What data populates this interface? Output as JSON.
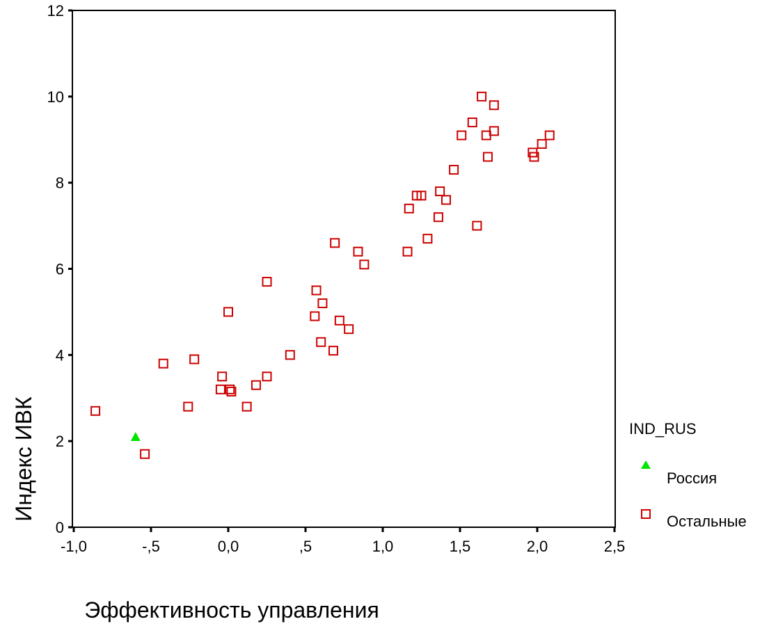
{
  "chart_data": {
    "type": "scatter",
    "xlabel": "Эффективность управления",
    "ylabel": "Индекс ИВК",
    "xlim": [
      -1.0,
      2.5
    ],
    "ylim": [
      0,
      12
    ],
    "x_ticks": [
      {
        "value": -1.0,
        "label": "-1,0"
      },
      {
        "value": -0.5,
        "label": "-,5"
      },
      {
        "value": 0.0,
        "label": "0,0"
      },
      {
        "value": 0.5,
        "label": ",5"
      },
      {
        "value": 1.0,
        "label": "1,0"
      },
      {
        "value": 1.5,
        "label": "1,5"
      },
      {
        "value": 2.0,
        "label": "2,0"
      },
      {
        "value": 2.5,
        "label": "2,5"
      }
    ],
    "y_ticks": [
      {
        "value": 0,
        "label": "0"
      },
      {
        "value": 2,
        "label": "2"
      },
      {
        "value": 4,
        "label": "4"
      },
      {
        "value": 6,
        "label": "6"
      },
      {
        "value": 8,
        "label": "8"
      },
      {
        "value": 10,
        "label": "10"
      },
      {
        "value": 12,
        "label": "12"
      }
    ],
    "grid": false,
    "legend": {
      "title": "IND_RUS",
      "placement": "right"
    },
    "series": [
      {
        "name": "Россия",
        "marker": "triangle",
        "color": "#00e600",
        "points": [
          [
            -0.6,
            2.1
          ]
        ]
      },
      {
        "name": "Остальные",
        "marker": "square",
        "color": "#cc0000",
        "points": [
          [
            -0.86,
            2.7
          ],
          [
            -0.54,
            1.7
          ],
          [
            -0.42,
            3.8
          ],
          [
            -0.26,
            2.8
          ],
          [
            -0.22,
            3.9
          ],
          [
            -0.05,
            3.2
          ],
          [
            -0.04,
            3.5
          ],
          [
            0.0,
            5.0
          ],
          [
            0.01,
            3.2
          ],
          [
            0.02,
            3.15
          ],
          [
            0.12,
            2.8
          ],
          [
            0.18,
            3.3
          ],
          [
            0.25,
            3.5
          ],
          [
            0.25,
            5.7
          ],
          [
            0.4,
            4.0
          ],
          [
            0.56,
            4.9
          ],
          [
            0.57,
            5.5
          ],
          [
            0.6,
            4.3
          ],
          [
            0.61,
            5.2
          ],
          [
            0.68,
            4.1
          ],
          [
            0.69,
            6.6
          ],
          [
            0.72,
            4.8
          ],
          [
            0.78,
            4.6
          ],
          [
            0.84,
            6.4
          ],
          [
            0.88,
            6.1
          ],
          [
            1.16,
            6.4
          ],
          [
            1.17,
            7.4
          ],
          [
            1.22,
            7.7
          ],
          [
            1.25,
            7.7
          ],
          [
            1.29,
            6.7
          ],
          [
            1.36,
            7.2
          ],
          [
            1.37,
            7.8
          ],
          [
            1.41,
            7.6
          ],
          [
            1.46,
            8.3
          ],
          [
            1.51,
            9.1
          ],
          [
            1.58,
            9.4
          ],
          [
            1.61,
            7.0
          ],
          [
            1.64,
            10.0
          ],
          [
            1.67,
            9.1
          ],
          [
            1.68,
            8.6
          ],
          [
            1.72,
            9.8
          ],
          [
            1.72,
            9.2
          ],
          [
            1.97,
            8.7
          ],
          [
            1.98,
            8.6
          ],
          [
            2.03,
            8.9
          ],
          [
            2.08,
            9.1
          ]
        ]
      }
    ]
  }
}
